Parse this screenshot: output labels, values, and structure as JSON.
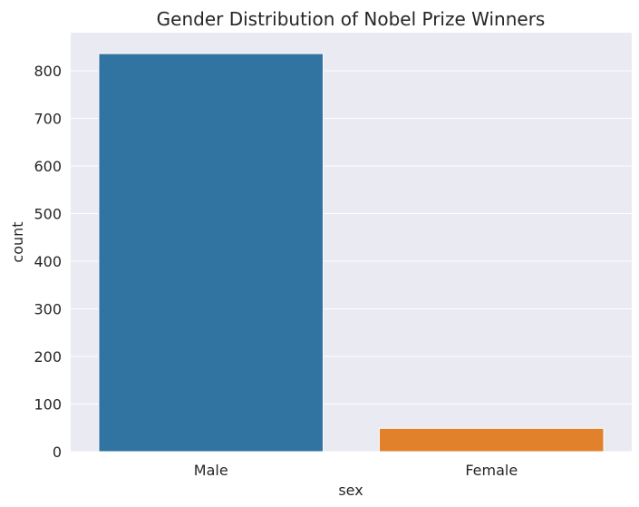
{
  "chart_data": {
    "type": "bar",
    "title": "Gender Distribution of Nobel Prize Winners",
    "xlabel": "sex",
    "ylabel": "count",
    "categories": [
      "Male",
      "Female"
    ],
    "values": [
      836,
      49
    ],
    "colors": [
      "#3274a1",
      "#e1812c"
    ],
    "ylim": [
      0,
      880
    ],
    "yticks": [
      0,
      100,
      200,
      300,
      400,
      500,
      600,
      700,
      800
    ],
    "grid": true,
    "legend": "none",
    "background": "#eaeaf2"
  }
}
